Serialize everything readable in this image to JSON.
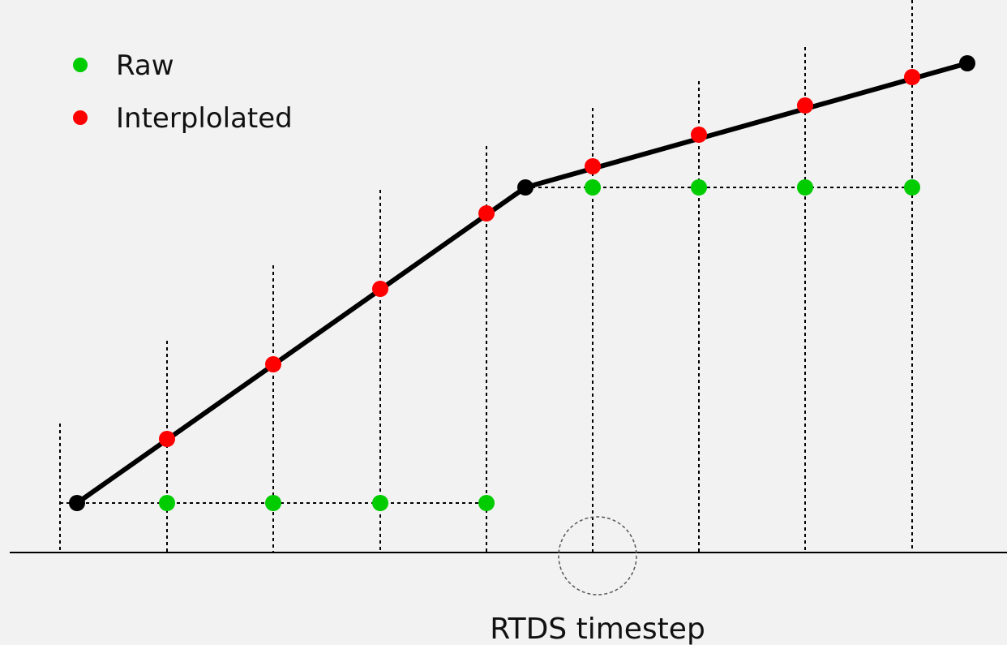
{
  "legend": {
    "raw_label": "Raw",
    "interpolated_label": "Interplolated",
    "raw_color": "#00cc00",
    "interpolated_color": "#ff0000"
  },
  "caption": "RTDS timestep",
  "colors": {
    "line": "#000000",
    "knot": "#000000",
    "background": "#f2f2f2"
  }
}
